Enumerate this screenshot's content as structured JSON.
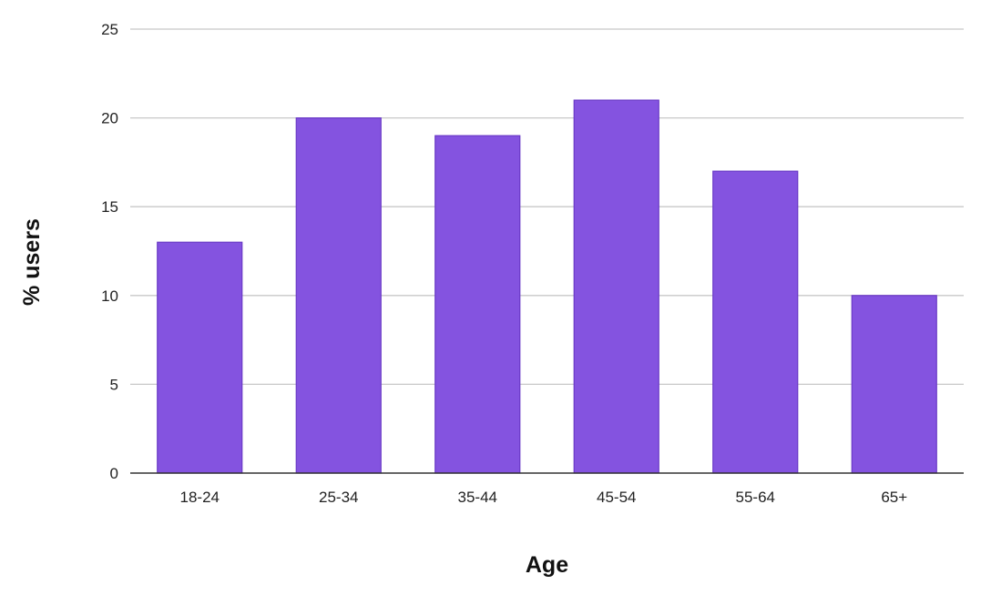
{
  "chart_data": {
    "type": "bar",
    "title": "",
    "xlabel": "Age",
    "ylabel": "% users",
    "categories": [
      "18-24",
      "25-34",
      "35-44",
      "45-54",
      "55-64",
      "65+"
    ],
    "values": [
      13,
      20,
      19,
      21,
      17,
      10
    ],
    "ylim": [
      0,
      25
    ],
    "yticks": [
      "0",
      "5",
      "10",
      "15",
      "20",
      "25"
    ],
    "grid": true,
    "legend": "none",
    "bar_color": "#8453E0",
    "bar_edge_color": "#6A3AC6"
  }
}
